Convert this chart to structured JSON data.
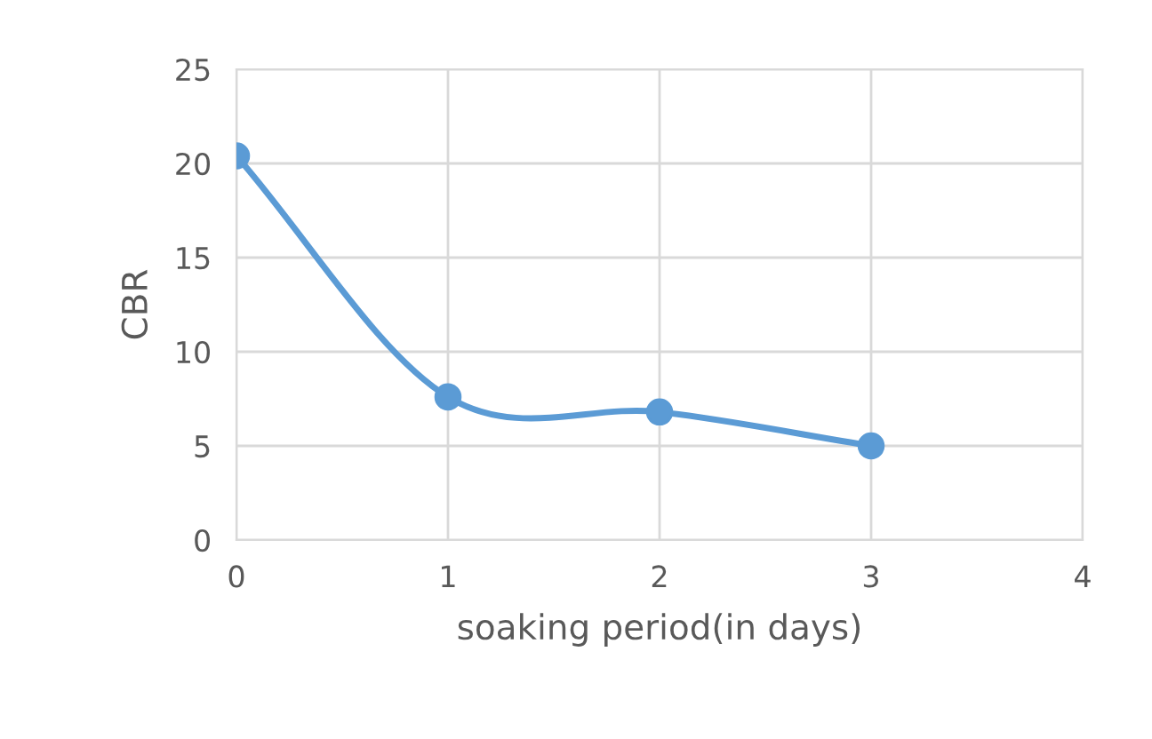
{
  "chart_data": {
    "type": "line",
    "xlabel": "soaking period(in days)",
    "ylabel": "CBR",
    "x": [
      0,
      1,
      2,
      3
    ],
    "series": [
      {
        "color": "#5b9bd5",
        "values": [
          20.4,
          7.6,
          6.8,
          5.0
        ]
      }
    ],
    "xlim": [
      0,
      4
    ],
    "xticks": [
      0,
      1,
      2,
      3,
      4
    ],
    "ylim": [
      0,
      25
    ],
    "yticks": [
      0,
      5,
      10,
      15,
      20,
      25
    ],
    "grid": true,
    "marker": "circle",
    "line_style": "solid",
    "legend": false
  }
}
